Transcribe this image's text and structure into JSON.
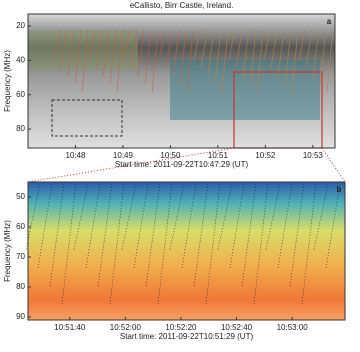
{
  "chart_data": [
    {
      "type": "spectrogram",
      "title": "eCallisto, Birr Castle, Ireland.",
      "panel": "a",
      "ylabel": "Frequency (MHz)",
      "ylim": [
        13,
        91
      ],
      "yticks": [
        20,
        40,
        60,
        80
      ],
      "xlabel": "Start time: 2011-09-22T10:47:29 (UT)",
      "xlim": [
        "10:47:00",
        "10:53:28"
      ],
      "xticks": [
        "10:48",
        "10:49",
        "10:50",
        "10:51",
        "10:52",
        "10:53"
      ]
    },
    {
      "type": "spectrogram",
      "panel": "b",
      "ylabel": "Frequency (MHz)",
      "ylim": [
        45,
        91
      ],
      "yticks": [
        50,
        60,
        70,
        80,
        90
      ],
      "xlabel": "Start time: 2011-09-22T10:51:29 (UT)",
      "xlim": [
        "10:51:25",
        "10:53:19"
      ],
      "xticks": [
        "10:51:40",
        "10:52:00",
        "10:52:20",
        "10:52:40",
        "10:53:00"
      ]
    }
  ]
}
